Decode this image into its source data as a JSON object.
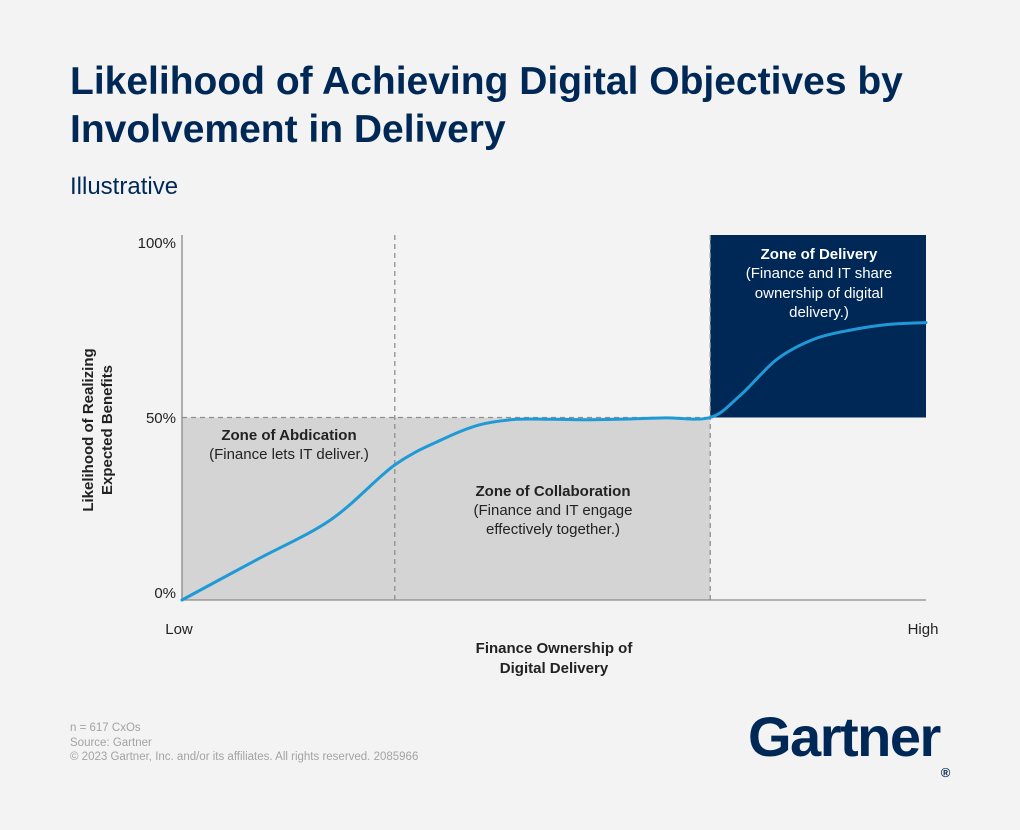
{
  "header": {
    "title": "Likelihood of Achieving Digital Objectives by Involvement in Delivery",
    "subtitle": "Illustrative"
  },
  "chart_data": {
    "type": "line",
    "title": "Likelihood of Achieving Digital Objectives by Involvement in Delivery",
    "subtitle": "Illustrative",
    "ylabel": "Likelihood of Realizing Expected Benefits",
    "xlabel": "Finance Ownership of Digital Delivery",
    "x_tick_labels": [
      "Low",
      "High"
    ],
    "y_ticks": [
      0,
      50,
      100
    ],
    "y_tick_labels": [
      "0%",
      "50%",
      "100%"
    ],
    "ylim": [
      0,
      100
    ],
    "xlim": [
      0,
      100
    ],
    "series": [
      {
        "color": "#1f9ad6",
        "x": [
          0,
          10,
          20,
          28.6,
          35,
          40,
          45,
          50,
          55,
          60,
          65,
          71,
          75,
          80,
          85,
          90,
          95,
          100
        ],
        "y": [
          0,
          11,
          22,
          37,
          44,
          48,
          49.5,
          49.5,
          49.4,
          49.6,
          49.9,
          50,
          56,
          66,
          71.5,
          74,
          75.5,
          76
        ]
      }
    ],
    "zones": [
      {
        "name": "Zone of Abdication",
        "description": "(Finance lets IT deliver.)",
        "x_range": [
          0,
          28.6
        ],
        "y_range": [
          0,
          50
        ],
        "fill": "#d4d4d4"
      },
      {
        "name": "Zone of Collaboration",
        "description": "(Finance and IT engage effectively together.)",
        "x_range": [
          28.6,
          71
        ],
        "y_range": [
          0,
          50
        ],
        "fill": "#d4d4d4"
      },
      {
        "name": "Zone of Delivery",
        "description": "(Finance and IT share ownership of digital delivery.)",
        "x_range": [
          71,
          100
        ],
        "y_range": [
          50,
          100
        ],
        "fill": "#002856"
      }
    ]
  },
  "labels": {
    "abdication_title": "Zone of Abdication",
    "abdication_desc": "(Finance lets IT deliver.)",
    "collab_title": "Zone of Collaboration",
    "collab_desc_1": "(Finance and IT engage",
    "collab_desc_2": "effectively together.)",
    "delivery_title": "Zone of Delivery",
    "delivery_desc_1": "(Finance and IT share",
    "delivery_desc_2": "ownership of digital",
    "delivery_desc_3": "delivery.)",
    "ylabel_1": "Likelihood of Realizing",
    "ylabel_2": "Expected Benefits",
    "xlabel_1": "Finance Ownership of",
    "xlabel_2": "Digital Delivery",
    "x_low": "Low",
    "x_high": "High",
    "y_0": "0%",
    "y_50": "50%",
    "y_100": "100%"
  },
  "footer": {
    "n": "n = 617 CxOs",
    "source": "Source: Gartner",
    "copyright": "© 2023 Gartner, Inc. and/or its affiliates. All rights reserved. 2085966",
    "logo_text": "Gartner",
    "logo_mark": "®"
  }
}
